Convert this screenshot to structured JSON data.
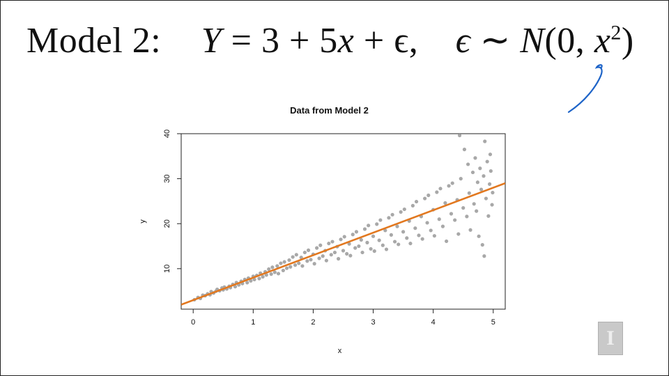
{
  "slide": {
    "equation": {
      "model_label": "Model 2:",
      "lhs": "Y",
      "rhs": "= 3 + 5",
      "rhs_var": "x",
      "rhs_tail": "+ ϵ,",
      "eps": "ϵ",
      "dist": "∼",
      "dist_name": "N",
      "dist_args": "(0,",
      "dist_var": "x",
      "dist_exp": "2",
      "dist_close": ")"
    },
    "logo_glyph": "I",
    "colors": {
      "points": "#a8a8a8",
      "fit_line": "#e2781f",
      "annotation": "#1e64c8"
    }
  },
  "chart_data": {
    "type": "scatter",
    "title": "Data from Model 2",
    "xlabel": "x",
    "ylabel": "y",
    "xlim": [
      -0.2,
      5.2
    ],
    "ylim": [
      1,
      40
    ],
    "xticks": [
      0,
      1,
      2,
      3,
      4,
      5
    ],
    "yticks": [
      10,
      20,
      30,
      40
    ],
    "fit_line": {
      "intercept": 3,
      "slope": 5
    },
    "points": [
      [
        0.02,
        3.1
      ],
      [
        0.08,
        3.6
      ],
      [
        0.12,
        3.4
      ],
      [
        0.16,
        4.1
      ],
      [
        0.2,
        4.0
      ],
      [
        0.24,
        4.4
      ],
      [
        0.28,
        4.2
      ],
      [
        0.3,
        4.9
      ],
      [
        0.34,
        4.6
      ],
      [
        0.38,
        5.0
      ],
      [
        0.4,
        5.4
      ],
      [
        0.44,
        5.1
      ],
      [
        0.48,
        5.7
      ],
      [
        0.5,
        5.3
      ],
      [
        0.52,
        5.9
      ],
      [
        0.56,
        5.5
      ],
      [
        0.6,
        6.1
      ],
      [
        0.62,
        5.8
      ],
      [
        0.66,
        6.5
      ],
      [
        0.7,
        6.0
      ],
      [
        0.72,
        6.9
      ],
      [
        0.76,
        6.4
      ],
      [
        0.8,
        7.2
      ],
      [
        0.82,
        6.7
      ],
      [
        0.86,
        7.6
      ],
      [
        0.9,
        6.9
      ],
      [
        0.92,
        7.9
      ],
      [
        0.96,
        7.3
      ],
      [
        1.0,
        8.3
      ],
      [
        1.02,
        7.6
      ],
      [
        1.06,
        8.5
      ],
      [
        1.1,
        7.8
      ],
      [
        1.12,
        9.0
      ],
      [
        1.16,
        8.2
      ],
      [
        1.2,
        9.3
      ],
      [
        1.22,
        8.6
      ],
      [
        1.26,
        9.9
      ],
      [
        1.3,
        8.8
      ],
      [
        1.32,
        10.3
      ],
      [
        1.36,
        9.2
      ],
      [
        1.4,
        10.6
      ],
      [
        1.42,
        8.9
      ],
      [
        1.46,
        11.2
      ],
      [
        1.5,
        9.6
      ],
      [
        1.52,
        11.5
      ],
      [
        1.56,
        10.1
      ],
      [
        1.6,
        11.9
      ],
      [
        1.62,
        10.4
      ],
      [
        1.66,
        12.6
      ],
      [
        1.7,
        10.8
      ],
      [
        1.72,
        13.1
      ],
      [
        1.76,
        11.2
      ],
      [
        1.8,
        12.5
      ],
      [
        1.82,
        10.6
      ],
      [
        1.86,
        13.6
      ],
      [
        1.9,
        11.7
      ],
      [
        1.92,
        14.1
      ],
      [
        1.96,
        12.0
      ],
      [
        2.0,
        13.2
      ],
      [
        2.02,
        11.1
      ],
      [
        2.06,
        14.6
      ],
      [
        2.1,
        12.3
      ],
      [
        2.12,
        15.2
      ],
      [
        2.16,
        12.8
      ],
      [
        2.2,
        14.0
      ],
      [
        2.22,
        11.8
      ],
      [
        2.26,
        15.6
      ],
      [
        2.3,
        13.1
      ],
      [
        2.32,
        16.0
      ],
      [
        2.36,
        13.6
      ],
      [
        2.4,
        14.9
      ],
      [
        2.42,
        12.2
      ],
      [
        2.46,
        16.5
      ],
      [
        2.5,
        14.0
      ],
      [
        2.52,
        17.1
      ],
      [
        2.56,
        13.3
      ],
      [
        2.6,
        15.5
      ],
      [
        2.62,
        12.9
      ],
      [
        2.66,
        17.6
      ],
      [
        2.7,
        14.6
      ],
      [
        2.72,
        18.2
      ],
      [
        2.76,
        15.0
      ],
      [
        2.8,
        16.4
      ],
      [
        2.82,
        13.6
      ],
      [
        2.86,
        18.8
      ],
      [
        2.9,
        15.8
      ],
      [
        2.92,
        19.6
      ],
      [
        2.96,
        14.4
      ],
      [
        3.0,
        17.2
      ],
      [
        3.02,
        13.9
      ],
      [
        3.06,
        19.9
      ],
      [
        3.1,
        16.3
      ],
      [
        3.12,
        20.8
      ],
      [
        3.16,
        15.2
      ],
      [
        3.2,
        18.5
      ],
      [
        3.22,
        14.3
      ],
      [
        3.26,
        21.3
      ],
      [
        3.3,
        17.5
      ],
      [
        3.32,
        22.0
      ],
      [
        3.36,
        16.0
      ],
      [
        3.4,
        19.4
      ],
      [
        3.42,
        15.4
      ],
      [
        3.46,
        22.6
      ],
      [
        3.5,
        18.2
      ],
      [
        3.52,
        23.2
      ],
      [
        3.56,
        16.8
      ],
      [
        3.6,
        20.6
      ],
      [
        3.62,
        15.6
      ],
      [
        3.66,
        24.0
      ],
      [
        3.7,
        19.0
      ],
      [
        3.72,
        24.9
      ],
      [
        3.76,
        17.4
      ],
      [
        3.8,
        21.6
      ],
      [
        3.82,
        16.6
      ],
      [
        3.86,
        25.6
      ],
      [
        3.9,
        20.2
      ],
      [
        3.92,
        26.3
      ],
      [
        3.96,
        18.5
      ],
      [
        4.0,
        23.1
      ],
      [
        4.02,
        17.3
      ],
      [
        4.06,
        27.0
      ],
      [
        4.1,
        21.0
      ],
      [
        4.12,
        27.8
      ],
      [
        4.16,
        19.4
      ],
      [
        4.2,
        24.6
      ],
      [
        4.22,
        16.1
      ],
      [
        4.26,
        28.4
      ],
      [
        4.3,
        22.2
      ],
      [
        4.32,
        29.0
      ],
      [
        4.36,
        20.8
      ],
      [
        4.4,
        25.3
      ],
      [
        4.42,
        17.7
      ],
      [
        4.44,
        39.6
      ],
      [
        4.46,
        30.0
      ],
      [
        4.5,
        23.5
      ],
      [
        4.52,
        36.5
      ],
      [
        4.56,
        21.6
      ],
      [
        4.58,
        33.2
      ],
      [
        4.6,
        26.8
      ],
      [
        4.62,
        18.6
      ],
      [
        4.66,
        31.4
      ],
      [
        4.68,
        24.4
      ],
      [
        4.7,
        34.6
      ],
      [
        4.72,
        22.8
      ],
      [
        4.74,
        29.2
      ],
      [
        4.76,
        17.2
      ],
      [
        4.78,
        32.3
      ],
      [
        4.8,
        27.6
      ],
      [
        4.82,
        15.3
      ],
      [
        4.84,
        30.6
      ],
      [
        4.85,
        12.8
      ],
      [
        4.86,
        38.3
      ],
      [
        4.88,
        25.6
      ],
      [
        4.9,
        33.8
      ],
      [
        4.92,
        21.7
      ],
      [
        4.94,
        28.8
      ],
      [
        4.96,
        31.7
      ],
      [
        4.98,
        24.2
      ],
      [
        4.99,
        26.9
      ],
      [
        4.95,
        35.4
      ]
    ]
  }
}
